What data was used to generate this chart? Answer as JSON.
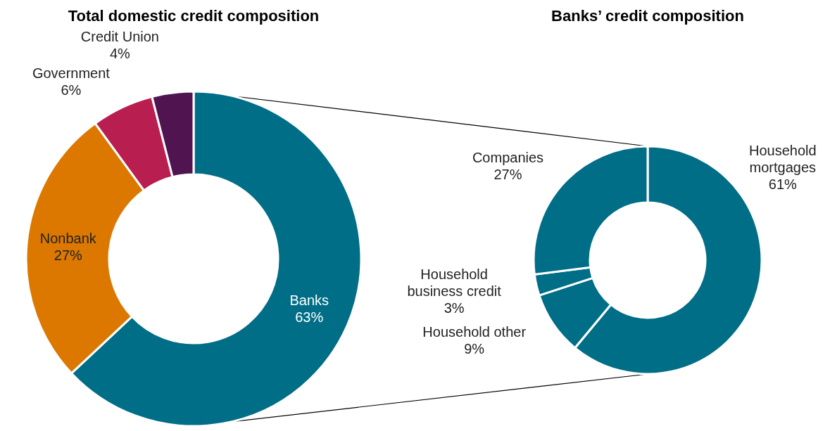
{
  "chart_data": [
    {
      "type": "donut",
      "title": "Total domestic credit composition",
      "categories": [
        "Banks",
        "Nonbank",
        "Government",
        "Credit Union"
      ],
      "values": [
        63,
        27,
        6,
        4
      ],
      "colors": [
        "#006e87",
        "#dc7800",
        "#b91e50",
        "#501450"
      ],
      "value_labels": [
        "63%",
        "27%",
        "6%",
        "4%"
      ]
    },
    {
      "type": "donut",
      "title": "Banks’ credit composition",
      "categories": [
        "Household mortgages",
        "Household other",
        "Household business credit",
        "Companies"
      ],
      "values": [
        61,
        9,
        3,
        27
      ],
      "colors": [
        "#006e87",
        "#006e87",
        "#006e87",
        "#006e87"
      ],
      "value_labels": [
        "61%",
        "9%",
        "3%",
        "27%"
      ]
    }
  ]
}
